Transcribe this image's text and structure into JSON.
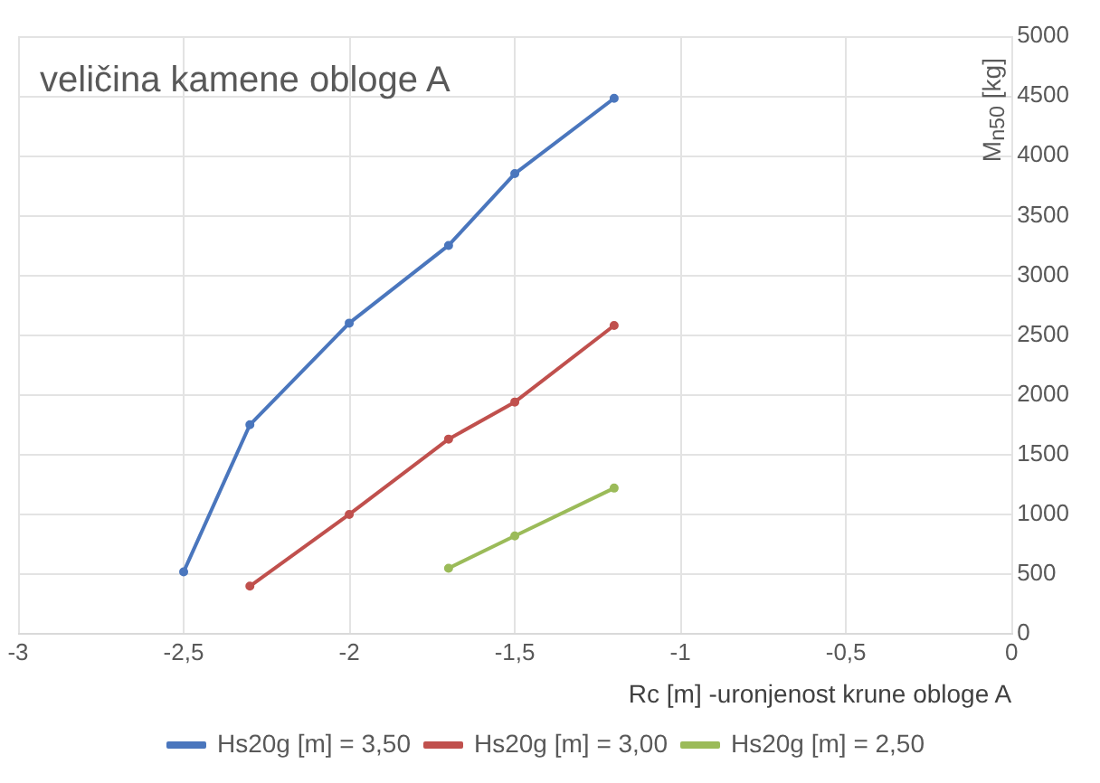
{
  "chart_data": {
    "type": "line",
    "title": "veličina kamene obloge A",
    "xlabel": "Rc [m] -uronjenost krune obloge A",
    "ylabel": "M$_{n50}$ [kg]",
    "series": [
      {
        "name": "Hs20g [m] = 3,50",
        "color": "#4a76bd",
        "x": [
          -2.5,
          -2.3,
          -2,
          -1.7,
          -1.5,
          -1.2
        ],
        "values": [
          520,
          1750,
          2600,
          3250,
          3850,
          4480
        ]
      },
      {
        "name": "Hs20g [m] = 3,00",
        "color": "#c0504d",
        "x": [
          -2.3,
          -2,
          -1.7,
          -1.5,
          -1.2
        ],
        "values": [
          400,
          1000,
          1630,
          1940,
          2580
        ]
      },
      {
        "name": "Hs20g [m] = 2,50",
        "color": "#9bbb59",
        "x": [
          -1.7,
          -1.5,
          -1.2
        ],
        "values": [
          550,
          820,
          1220
        ]
      }
    ],
    "xlim": [
      -3,
      0
    ],
    "xticks": [
      -3,
      {
        "value": -2.5,
        "label": "-2,5"
      },
      -2,
      {
        "value": -1.5,
        "label": "-1,5"
      },
      -1,
      {
        "value": -0.5,
        "label": "-0,5"
      },
      0
    ],
    "ylim": [
      0,
      5000
    ],
    "yticks": [
      0,
      500,
      1000,
      1500,
      2000,
      2500,
      3000,
      3500,
      4000,
      4500,
      5000
    ],
    "grid": true,
    "legend": "bottom",
    "marker": "circle",
    "line_style": "solid"
  }
}
